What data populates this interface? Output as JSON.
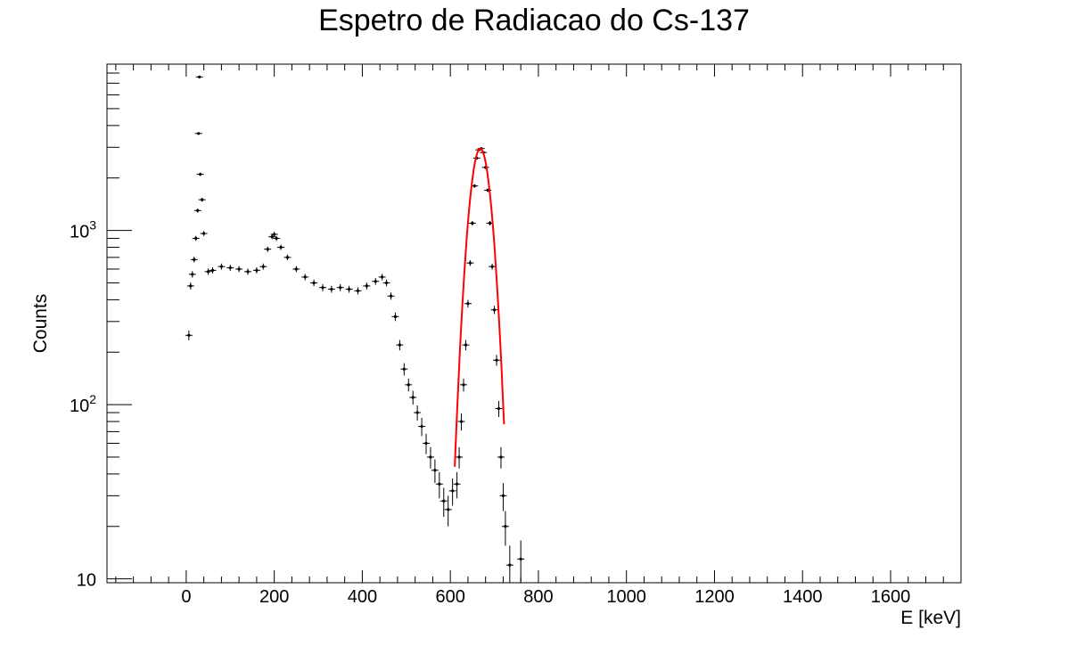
{
  "chart_data": {
    "type": "scatter",
    "title": "Espetro de Radiacao do Cs-137",
    "xlabel": "E [keV]",
    "ylabel": "Counts",
    "xlim": [
      -180,
      1760
    ],
    "ylim": [
      9.5,
      9000
    ],
    "yscale": "log",
    "grid": false,
    "x_ticks": [
      0,
      200,
      400,
      600,
      800,
      1000,
      1200,
      1400,
      1600
    ],
    "x_tick_labels": [
      "0",
      "200",
      "400",
      "600",
      "800",
      "1000",
      "1200",
      "1400",
      "1600"
    ],
    "y_tick_labels": [
      {
        "value": 10,
        "label": "10",
        "sup": ""
      },
      {
        "value": 100,
        "label": "10",
        "sup": "2"
      },
      {
        "value": 1000,
        "label": "10",
        "sup": "3"
      }
    ],
    "colors": {
      "data": "#000000",
      "fit": "#ff0000"
    },
    "series": [
      {
        "kind": "data",
        "x": [
          6,
          10,
          14,
          18,
          22,
          26,
          28,
          30,
          32,
          36,
          40,
          50,
          60,
          80,
          100,
          120,
          140,
          160,
          175,
          185,
          195,
          200,
          205,
          215,
          230,
          250,
          270,
          290,
          310,
          330,
          350,
          370,
          390,
          410,
          430,
          445,
          455,
          465,
          475,
          485,
          495,
          505,
          515,
          525,
          535,
          545,
          555,
          565,
          575,
          585,
          595,
          605,
          615,
          620,
          625,
          630,
          635,
          640,
          645,
          650,
          655,
          660,
          665,
          670,
          675,
          680,
          685,
          690,
          695,
          700,
          705,
          710,
          715,
          720,
          725,
          735,
          760
        ],
        "y": [
          250,
          480,
          560,
          680,
          900,
          1300,
          3600,
          7600,
          2100,
          1500,
          960,
          580,
          590,
          620,
          610,
          600,
          580,
          590,
          620,
          780,
          920,
          950,
          900,
          800,
          700,
          600,
          540,
          500,
          470,
          460,
          470,
          460,
          450,
          480,
          510,
          540,
          500,
          420,
          320,
          220,
          160,
          130,
          110,
          90,
          75,
          60,
          50,
          42,
          35,
          28,
          25,
          32,
          35,
          50,
          80,
          130,
          220,
          380,
          650,
          1100,
          1800,
          2600,
          2900,
          2950,
          2800,
          2300,
          1700,
          1100,
          620,
          350,
          180,
          95,
          50,
          30,
          20,
          12,
          13
        ],
        "yerr": [
          16,
          22,
          24,
          26,
          30,
          36,
          60,
          87,
          46,
          39,
          31,
          24,
          24,
          25,
          25,
          24,
          24,
          24,
          25,
          28,
          30,
          31,
          30,
          28,
          26,
          24,
          23,
          22,
          22,
          21,
          22,
          21,
          21,
          22,
          23,
          23,
          22,
          20,
          18,
          15,
          13,
          11,
          10,
          9,
          9,
          8,
          7,
          6.5,
          6,
          5.3,
          5,
          5.7,
          6,
          7,
          9,
          11,
          15,
          19,
          25,
          33,
          42,
          51,
          54,
          54,
          53,
          48,
          41,
          33,
          25,
          19,
          13,
          10,
          7,
          5.5,
          4.5,
          3.5,
          3.6
        ]
      },
      {
        "kind": "fit",
        "function": "gaussian",
        "amplitude": 2950,
        "mean": 668,
        "sigma": 20,
        "x_range": [
          610,
          722
        ]
      }
    ]
  }
}
